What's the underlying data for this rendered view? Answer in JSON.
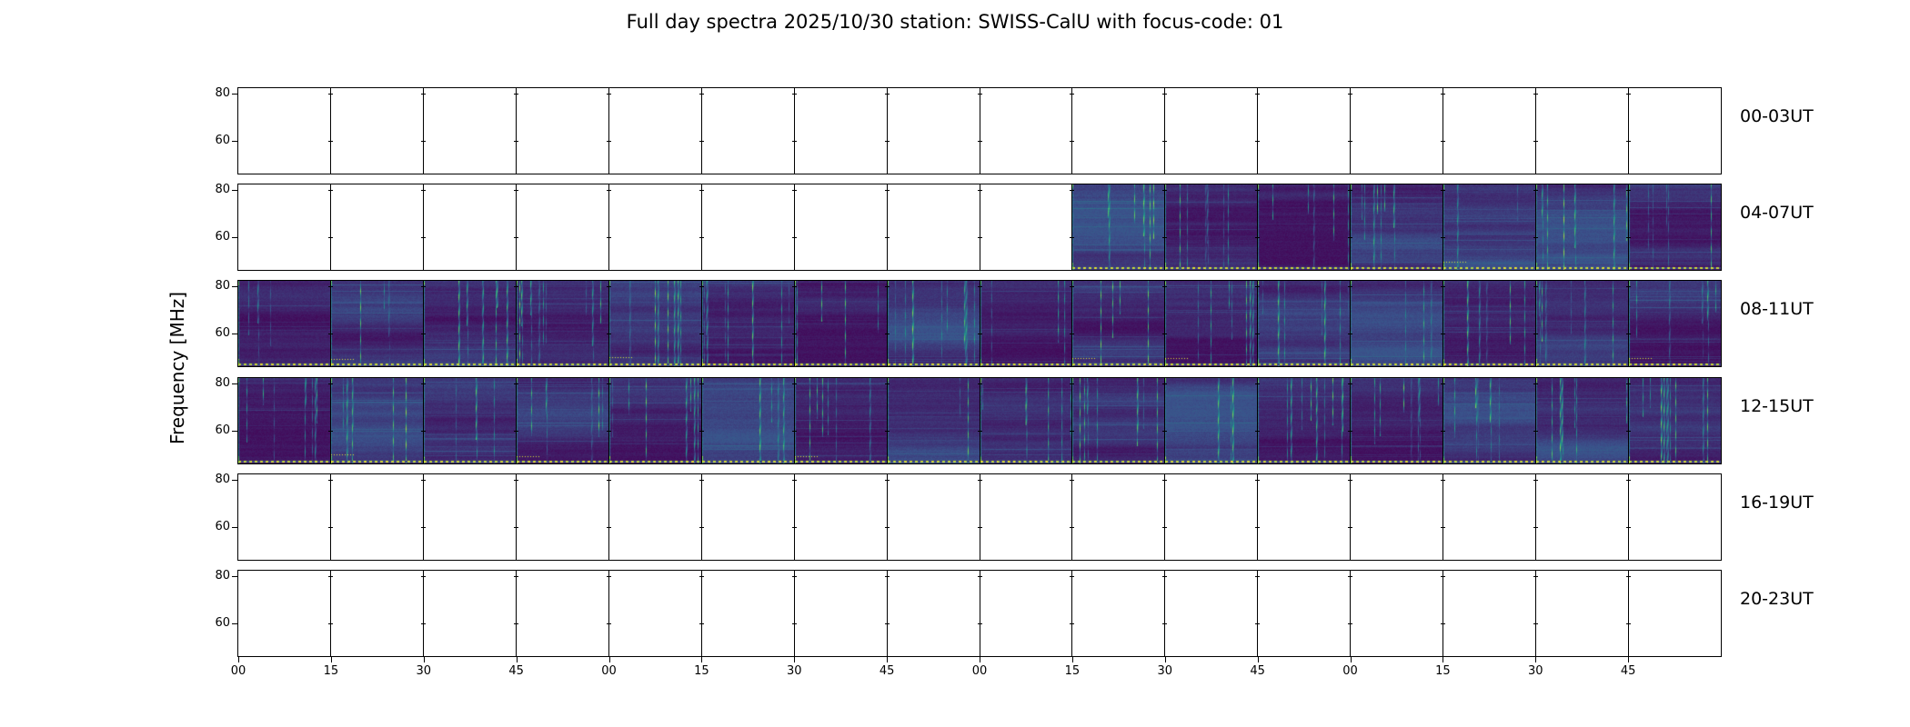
{
  "chart_data": {
    "type": "heatmap",
    "title": "Full day spectra 2025/10/30 station: SWISS-CalU with focus-code: 01",
    "ylabel": "Frequency [MHz]",
    "xlabel": "",
    "y_tick_labels": [
      "80",
      "60"
    ],
    "y_axis_range_mhz": [
      82,
      46
    ],
    "x_tick_labels": [
      "00",
      "15",
      "30",
      "45",
      "00",
      "15",
      "30",
      "45",
      "00",
      "15",
      "30",
      "45",
      "00",
      "15",
      "30",
      "45"
    ],
    "panels_per_row": 16,
    "rows_count": 6,
    "minutes_per_panel": 15,
    "grid": false,
    "legend": "none",
    "rows": [
      {
        "label": "00-03UT",
        "has_data": false,
        "data_start_panel": -1,
        "data_end_panel": -1
      },
      {
        "label": "04-07UT",
        "has_data": true,
        "data_start_panel": 9,
        "data_end_panel": 15
      },
      {
        "label": "08-11UT",
        "has_data": true,
        "data_start_panel": 0,
        "data_end_panel": 15
      },
      {
        "label": "12-15UT",
        "has_data": true,
        "data_start_panel": 0,
        "data_end_panel": 15
      },
      {
        "label": "16-19UT",
        "has_data": false,
        "data_start_panel": -1,
        "data_end_panel": -1
      },
      {
        "label": "20-23UT",
        "has_data": false,
        "data_start_panel": -1,
        "data_end_panel": -1
      }
    ],
    "colors": {
      "background": "#ffffff",
      "axis": "#000000",
      "spectrogram_base": "#3a2468",
      "spectrogram_streak": "#2fb5a8",
      "panel_edge_highlight": "#52c46a",
      "bottom_dashed_line": "#c9c12b"
    }
  }
}
